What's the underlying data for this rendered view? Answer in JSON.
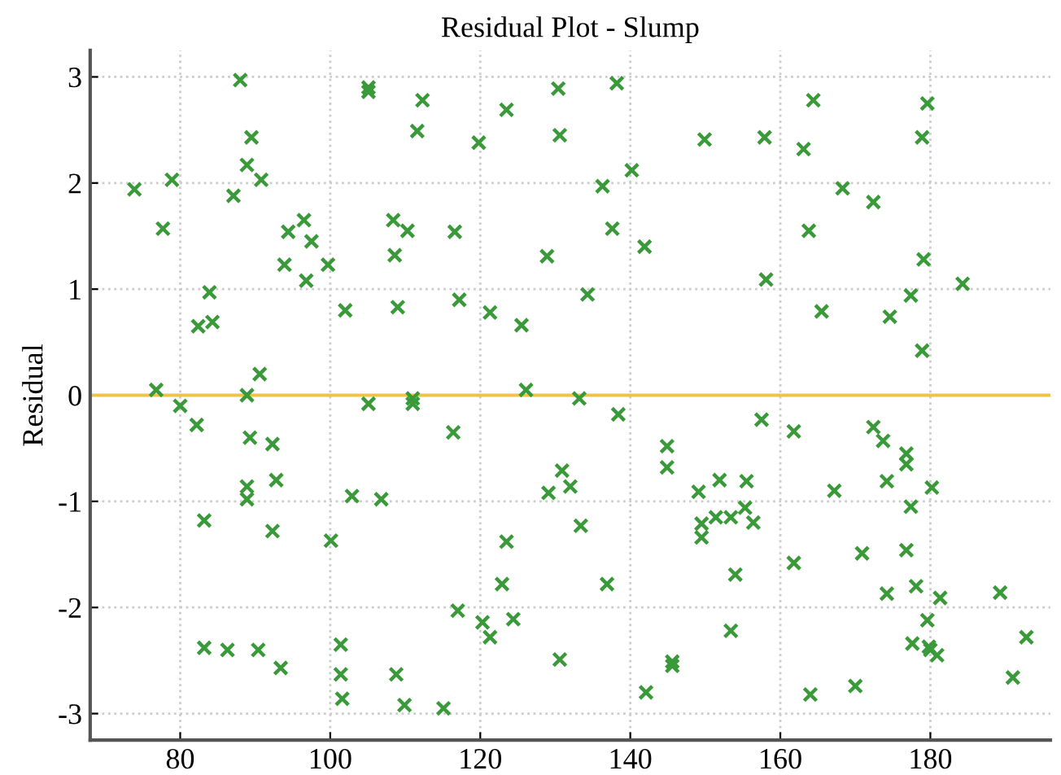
{
  "chart_data": {
    "type": "scatter",
    "title": "Residual Plot - Slump",
    "ylabel": "Residual",
    "xlim": [
      68,
      196
    ],
    "ylim": [
      -3.25,
      3.25
    ],
    "xticks": [
      80,
      100,
      120,
      140,
      160,
      180
    ],
    "yticks": [
      -3,
      -2,
      -1,
      0,
      1,
      2,
      3
    ],
    "grid": true,
    "marker": "cross",
    "ref_lines": [
      {
        "axis": "y",
        "value": 0,
        "color": "#f0c24a"
      }
    ],
    "series": [
      {
        "color": "#3a9a3a",
        "x": [
          73.9,
          77.7,
          78.9,
          76.8,
          80,
          82.2,
          82.4,
          83.9,
          84.3,
          83.2,
          83.2,
          86.3,
          90.4,
          93.4,
          88,
          89.5,
          88.9,
          87.1,
          90.8,
          90.6,
          88.9,
          89.3,
          88.9,
          88.9,
          92.3,
          92.8,
          92.3,
          93.9,
          94.4,
          96.5,
          97.5,
          96.8,
          99.7,
          102,
          100.1,
          101.4,
          101.4,
          101.6,
          102.9,
          105.1,
          105.1,
          105.1,
          106.8,
          108.4,
          108.6,
          109,
          108.8,
          109.9,
          110.3,
          112.3,
          111.6,
          116.6,
          119.8,
          123.5,
          130.4,
          130.6,
          138.2,
          140.2,
          136.3,
          137.6,
          141.9,
          149.9,
          128.9,
          117.2,
          121.3,
          125.5,
          134.3,
          126.1,
          164.4,
          179.6,
          157.9,
          163.1,
          178.9,
          168.3,
          172.4,
          163.8,
          179.1,
          158.1,
          184.3,
          177.4,
          165.5,
          174.6,
          178.9,
          111,
          111,
          133.2,
          138.4,
          116.4,
          144.9,
          144.9,
          130.9,
          132,
          129.1,
          133.4,
          123.5,
          149.1,
          151.9,
          155.5,
          149.5,
          149.5,
          151.4,
          153.4,
          155.3,
          154,
          136.9,
          122.9,
          117,
          120.3,
          124.4,
          121.3,
          153.4,
          130.6,
          145.6,
          145.6,
          142.1,
          115.1,
          157.5,
          161.8,
          156.4,
          172.4,
          173.7,
          176.8,
          176.8,
          174.2,
          180.2,
          167.2,
          177.4,
          170.9,
          176.8,
          161.8,
          174.2,
          178.1,
          181.3,
          189.3,
          179.6,
          177.6,
          179.8,
          180,
          180.9,
          192.8,
          191,
          170,
          164
        ],
        "values": [
          1.94,
          1.57,
          2.03,
          0.05,
          -0.1,
          -0.28,
          0.65,
          0.97,
          0.69,
          -1.18,
          -2.38,
          -2.4,
          -2.4,
          -2.57,
          2.97,
          2.43,
          2.17,
          1.88,
          2.03,
          0.2,
          0,
          -0.4,
          -0.86,
          -0.98,
          -0.46,
          -0.8,
          -1.28,
          1.23,
          1.54,
          1.65,
          1.45,
          1.08,
          1.23,
          0.8,
          -1.37,
          -2.35,
          -2.63,
          -2.86,
          -0.95,
          2.9,
          2.86,
          -0.08,
          -0.98,
          1.65,
          1.32,
          0.83,
          -2.63,
          -2.92,
          1.55,
          2.78,
          2.49,
          1.54,
          2.38,
          2.69,
          2.89,
          2.45,
          2.94,
          2.12,
          1.97,
          1.57,
          1.4,
          2.41,
          1.31,
          0.9,
          0.78,
          0.66,
          0.95,
          0.05,
          2.78,
          2.75,
          2.43,
          2.32,
          2.43,
          1.95,
          1.82,
          1.55,
          1.28,
          1.09,
          1.05,
          0.94,
          0.79,
          0.74,
          0.42,
          -0.03,
          -0.08,
          -0.03,
          -0.18,
          -0.35,
          -0.48,
          -0.68,
          -0.71,
          -0.86,
          -0.92,
          -1.23,
          -1.38,
          -0.91,
          -0.8,
          -0.81,
          -1.21,
          -1.34,
          -1.15,
          -1.15,
          -1.06,
          -1.69,
          -1.78,
          -1.78,
          -2.03,
          -2.14,
          -2.11,
          -2.28,
          -2.22,
          -2.49,
          -2.51,
          -2.55,
          -2.8,
          -2.95,
          -0.23,
          -0.34,
          -1.2,
          -0.3,
          -0.43,
          -0.55,
          -0.65,
          -0.81,
          -0.87,
          -0.9,
          -1.05,
          -1.49,
          -1.46,
          -1.58,
          -1.87,
          -1.8,
          -1.91,
          -1.86,
          -2.12,
          -2.34,
          -2.37,
          -2.4,
          -2.45,
          -2.28,
          -2.66,
          -2.74,
          -2.82
        ]
      }
    ]
  }
}
